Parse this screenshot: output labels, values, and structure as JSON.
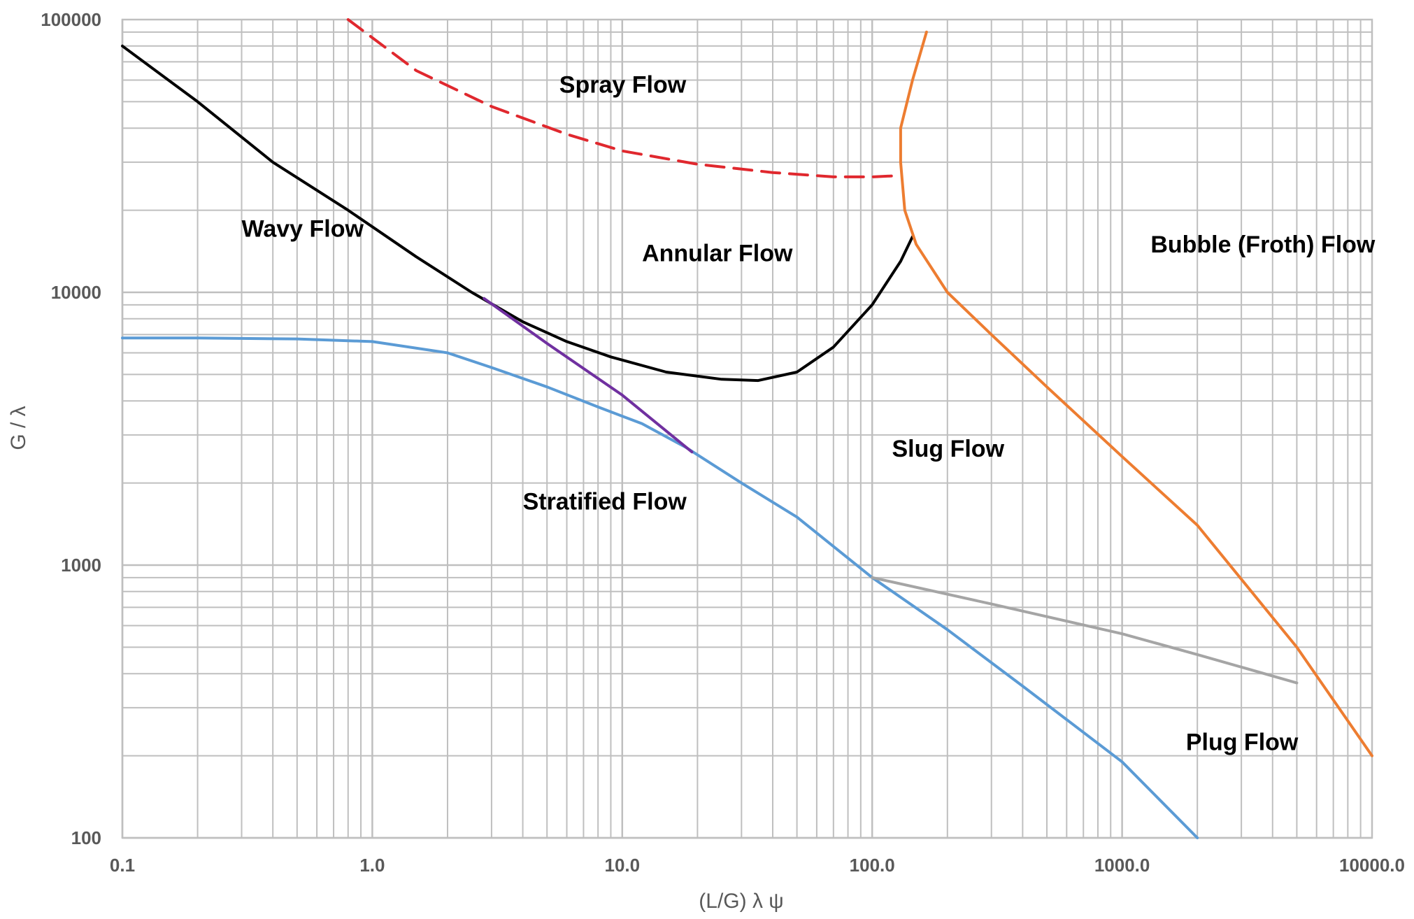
{
  "chart_data": {
    "type": "line",
    "title": "",
    "xlabel": "(L/G)  λ ψ",
    "ylabel": "G / λ",
    "xscale": "log",
    "yscale": "log",
    "xlim": [
      0.1,
      10000
    ],
    "ylim": [
      100,
      100000
    ],
    "x_tick_labels": [
      "0.1",
      "1.0",
      "10.0",
      "100.0",
      "1000.0",
      "10000.0"
    ],
    "x_tick_values": [
      0.1,
      1,
      10,
      100,
      1000,
      10000
    ],
    "y_tick_labels": [
      "100",
      "1000",
      "10000",
      "100000"
    ],
    "y_tick_values": [
      100,
      1000,
      10000,
      100000
    ],
    "grid": "major and minor",
    "series": [
      {
        "color": "#000000",
        "style": "solid",
        "points": [
          [
            0.1,
            80000
          ],
          [
            0.2,
            50000
          ],
          [
            0.4,
            30000
          ],
          [
            0.8,
            20000
          ],
          [
            1.5,
            13500
          ],
          [
            2.5,
            10000
          ],
          [
            4,
            7800
          ],
          [
            6,
            6600
          ],
          [
            9,
            5800
          ],
          [
            15,
            5100
          ],
          [
            25,
            4800
          ],
          [
            35,
            4750
          ],
          [
            50,
            5100
          ],
          [
            70,
            6300
          ],
          [
            100,
            9000
          ],
          [
            130,
            13000
          ],
          [
            145,
            16000
          ]
        ]
      },
      {
        "color": "#E0282E",
        "style": "dashed",
        "points": [
          [
            0.8,
            100000
          ],
          [
            1.5,
            65000
          ],
          [
            3,
            48000
          ],
          [
            6,
            38000
          ],
          [
            10,
            33000
          ],
          [
            20,
            29500
          ],
          [
            40,
            27500
          ],
          [
            70,
            26500
          ],
          [
            100,
            26500
          ],
          [
            130,
            26800
          ]
        ]
      },
      {
        "color": "#5B9BD5",
        "style": "solid",
        "points": [
          [
            0.1,
            6800
          ],
          [
            0.2,
            6800
          ],
          [
            0.5,
            6750
          ],
          [
            1,
            6600
          ],
          [
            2,
            6000
          ],
          [
            3,
            5300
          ],
          [
            5,
            4500
          ],
          [
            8,
            3800
          ],
          [
            12,
            3300
          ],
          [
            18,
            2700
          ],
          [
            30,
            2000
          ],
          [
            50,
            1500
          ],
          [
            100,
            900
          ],
          [
            200,
            580
          ],
          [
            400,
            360
          ],
          [
            1000,
            190
          ],
          [
            2000,
            100
          ]
        ]
      },
      {
        "color": "#7030A0",
        "style": "solid",
        "points": [
          [
            2.8,
            9500
          ],
          [
            5,
            6500
          ],
          [
            10,
            4200
          ],
          [
            19,
            2600
          ]
        ]
      },
      {
        "color": "#ED7D31",
        "style": "solid",
        "points": [
          [
            165,
            90000
          ],
          [
            145,
            60000
          ],
          [
            130,
            40000
          ],
          [
            130,
            30000
          ],
          [
            135,
            20000
          ],
          [
            150,
            15000
          ],
          [
            200,
            10000
          ],
          [
            300,
            7000
          ],
          [
            500,
            4500
          ],
          [
            1000,
            2500
          ],
          [
            2000,
            1400
          ],
          [
            5000,
            500
          ],
          [
            10000,
            200
          ]
        ]
      },
      {
        "color": "#A5A5A5",
        "style": "solid",
        "points": [
          [
            100,
            900
          ],
          [
            300,
            720
          ],
          [
            1000,
            560
          ],
          [
            2000,
            470
          ],
          [
            5000,
            370
          ]
        ]
      }
    ],
    "region_labels": [
      {
        "text": "Spray Flow",
        "x": 5.6,
        "y": 54000
      },
      {
        "text": "Wavy Flow",
        "x": 0.3,
        "y": 16000
      },
      {
        "text": "Annular Flow",
        "x": 12,
        "y": 13000
      },
      {
        "text": "Bubble (Froth) Flow",
        "x": 1300,
        "y": 14000
      },
      {
        "text": "Slug Flow",
        "x": 120,
        "y": 2500
      },
      {
        "text": "Stratified Flow",
        "x": 4,
        "y": 1600
      },
      {
        "text": "Plug Flow",
        "x": 1800,
        "y": 210
      }
    ]
  }
}
